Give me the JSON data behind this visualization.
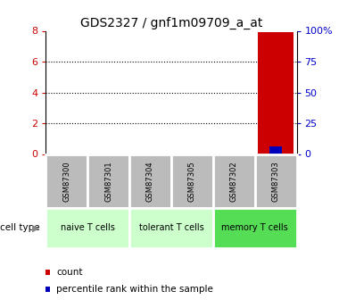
{
  "title": "GDS2327 / gnf1m09709_a_at",
  "samples": [
    "GSM87300",
    "GSM87301",
    "GSM87304",
    "GSM87305",
    "GSM87302",
    "GSM87303"
  ],
  "groups": [
    {
      "name": "naive T cells",
      "indices": [
        0,
        1
      ],
      "color": "#ccffcc"
    },
    {
      "name": "tolerant T cells",
      "indices": [
        2,
        3
      ],
      "color": "#ccffcc"
    },
    {
      "name": "memory T cells",
      "indices": [
        4,
        5
      ],
      "color": "#55dd55"
    }
  ],
  "count_values": [
    0,
    0,
    0,
    0,
    0,
    7.9
  ],
  "percentile_values": [
    0,
    0,
    0,
    0,
    0,
    6.0
  ],
  "ylim_left": [
    0,
    8
  ],
  "ylim_right": [
    0,
    100
  ],
  "yticks_left": [
    0,
    2,
    4,
    6,
    8
  ],
  "yticks_right": [
    0,
    25,
    50,
    75,
    100
  ],
  "left_tick_color": "#cc0000",
  "right_tick_color": "#0000cc",
  "bar_color_count": "#cc0000",
  "bar_color_percentile": "#0000bb",
  "sample_box_color": "#bbbbbb",
  "title_fontsize": 10,
  "legend_count_label": "count",
  "legend_percentile_label": "percentile rank within the sample"
}
